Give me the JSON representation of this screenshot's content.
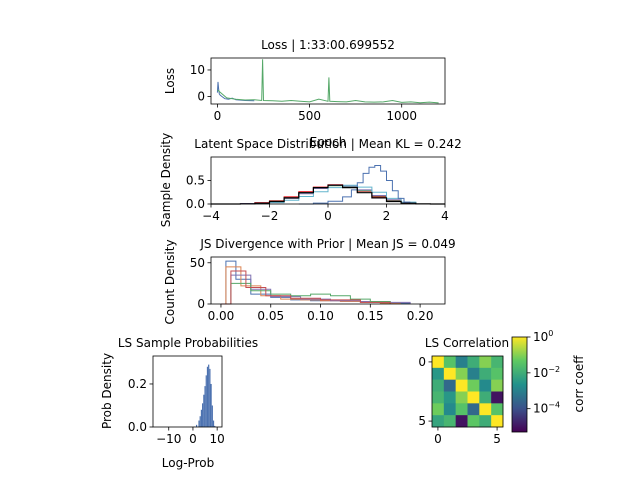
{
  "chart_data": [
    {
      "type": "line",
      "title": "Loss | 1:33:00.699552",
      "xlabel": "Epoch",
      "ylabel": "Loss",
      "xlim": [
        -35,
        1235
      ],
      "ylim": [
        -2.8,
        14.5
      ],
      "xticks": [
        0,
        500,
        1000
      ],
      "xtick_labels": [
        "0",
        "500",
        "1000"
      ],
      "yticks": [
        10,
        0
      ],
      "ytick_labels": [
        "10",
        "0"
      ],
      "series": [
        {
          "color": "#4c72b0",
          "x": [
            0,
            3,
            6,
            10,
            15,
            25,
            40,
            60,
            80,
            100,
            150,
            200
          ],
          "y": [
            1.5,
            5.5,
            3.0,
            1.0,
            0.5,
            0.0,
            -0.8,
            -1.0,
            -0.6,
            -1.2,
            -1.5,
            -1.6
          ]
        },
        {
          "color": "#55a868",
          "x": [
            0,
            50,
            100,
            150,
            200,
            240,
            245,
            250,
            300,
            350,
            400,
            450,
            500,
            550,
            600,
            605,
            610,
            650,
            700,
            750,
            800,
            850,
            900,
            950,
            1000,
            1050,
            1100,
            1150,
            1200
          ],
          "y": [
            2.5,
            -0.5,
            -1.0,
            -1.3,
            -1.2,
            -1.5,
            14.0,
            -1.5,
            -1.6,
            -1.8,
            -1.5,
            -1.8,
            -2.0,
            -1.0,
            -1.8,
            7.2,
            -1.8,
            -1.9,
            -2.0,
            -1.5,
            -2.0,
            -2.1,
            -2.0,
            -1.5,
            -2.2,
            -2.0,
            -2.3,
            -2.1,
            -2.4
          ]
        }
      ]
    },
    {
      "type": "line",
      "title": "Latent Space Distribution | Mean KL = 0.242",
      "xlabel": "",
      "ylabel": "Sample Density",
      "xlim": [
        -4,
        4
      ],
      "ylim": [
        0,
        1.0
      ],
      "xticks": [
        -4,
        -2,
        0,
        2,
        4
      ],
      "xtick_labels": [
        "−4",
        "−2",
        "0",
        "2",
        "4"
      ],
      "yticks": [
        0.0,
        0.5
      ],
      "ytick_labels": [
        "0.0",
        "0.5"
      ],
      "series": [
        {
          "color": "#e8000b",
          "x": [
            -3.0,
            -2.5,
            -2.0,
            -1.5,
            -1.0,
            -0.5,
            0.0,
            0.5,
            1.0,
            1.5,
            2.0,
            2.5,
            3.0
          ],
          "y": [
            0.01,
            0.03,
            0.07,
            0.15,
            0.26,
            0.36,
            0.41,
            0.37,
            0.27,
            0.15,
            0.07,
            0.02,
            0.0
          ]
        },
        {
          "color": "#55a868",
          "x": [
            -3.0,
            -2.5,
            -2.0,
            -1.5,
            -1.0,
            -0.5,
            0.0,
            0.5,
            1.0,
            1.5,
            2.0,
            2.5,
            3.0
          ],
          "y": [
            0.01,
            0.02,
            0.06,
            0.13,
            0.24,
            0.34,
            0.39,
            0.37,
            0.28,
            0.17,
            0.08,
            0.03,
            0.01
          ]
        },
        {
          "color": "#8172b2",
          "x": [
            -3.0,
            -2.5,
            -2.0,
            -1.5,
            -1.0,
            -0.5,
            0.0,
            0.5,
            1.0,
            1.5,
            2.0,
            2.5,
            3.0
          ],
          "y": [
            0.01,
            0.02,
            0.05,
            0.12,
            0.22,
            0.33,
            0.4,
            0.38,
            0.3,
            0.18,
            0.09,
            0.03,
            0.01
          ]
        },
        {
          "color": "#64b5cd",
          "x": [
            -2.5,
            -2.0,
            -1.5,
            -1.0,
            -0.5,
            0.0,
            0.5,
            1.0,
            1.5,
            2.0,
            2.5,
            3.0
          ],
          "y": [
            0.01,
            0.03,
            0.08,
            0.16,
            0.26,
            0.35,
            0.4,
            0.36,
            0.25,
            0.12,
            0.04,
            0.01
          ]
        },
        {
          "color": "#4c72b0",
          "x": [
            -1.0,
            -0.5,
            0.0,
            0.5,
            0.8,
            1.0,
            1.2,
            1.4,
            1.6,
            1.8,
            2.0,
            2.2,
            2.4,
            2.6,
            2.8
          ],
          "y": [
            0.0,
            0.02,
            0.06,
            0.15,
            0.3,
            0.45,
            0.65,
            0.78,
            0.82,
            0.7,
            0.5,
            0.28,
            0.12,
            0.04,
            0.0
          ]
        },
        {
          "color": "#000000",
          "x": [
            -4.0,
            -3.5,
            -3.0,
            -2.5,
            -2.0,
            -1.5,
            -1.0,
            -0.5,
            0.0,
            0.5,
            1.0,
            1.5,
            2.0,
            2.5,
            3.0,
            3.5,
            4.0
          ],
          "y": [
            0.0,
            0.001,
            0.004,
            0.018,
            0.054,
            0.13,
            0.24,
            0.35,
            0.4,
            0.35,
            0.24,
            0.13,
            0.054,
            0.018,
            0.004,
            0.001,
            0.0
          ]
        }
      ]
    },
    {
      "type": "line",
      "title": "JS Divergence with Prior | Mean JS = 0.049",
      "xlabel": "",
      "ylabel": "Count Density",
      "xlim": [
        -0.01,
        0.225
      ],
      "ylim": [
        0,
        57
      ],
      "xticks": [
        0.0,
        0.05,
        0.1,
        0.15,
        0.2
      ],
      "xtick_labels": [
        "0.00",
        "0.05",
        "0.10",
        "0.15",
        "0.20"
      ],
      "yticks": [
        0,
        50
      ],
      "ytick_labels": [
        "0",
        "50"
      ],
      "series": [
        {
          "color": "#4c72b0",
          "x": [
            0.0,
            0.005,
            0.015,
            0.03,
            0.05,
            0.07,
            0.09,
            0.11,
            0.13,
            0.15,
            0.17,
            0.19
          ],
          "y": [
            0,
            52,
            30,
            12,
            8,
            5,
            4,
            4,
            3,
            2,
            1,
            0
          ]
        },
        {
          "color": "#dd8452",
          "x": [
            0.0,
            0.005,
            0.02,
            0.04,
            0.06,
            0.08,
            0.1,
            0.12,
            0.14,
            0.16,
            0.18
          ],
          "y": [
            0,
            45,
            22,
            10,
            6,
            5,
            4,
            3,
            2,
            1,
            0
          ]
        },
        {
          "color": "#8172b2",
          "x": [
            0.0,
            0.01,
            0.03,
            0.05,
            0.08,
            0.11,
            0.14,
            0.17,
            0.19
          ],
          "y": [
            0,
            35,
            18,
            9,
            6,
            4,
            3,
            2,
            0
          ]
        },
        {
          "color": "#55a868",
          "x": [
            0.0,
            0.01,
            0.03,
            0.05,
            0.07,
            0.09,
            0.11,
            0.13,
            0.15,
            0.17
          ],
          "y": [
            0,
            25,
            16,
            12,
            10,
            12,
            10,
            6,
            3,
            0
          ]
        },
        {
          "color": "#c44e52",
          "x": [
            0.0,
            0.01,
            0.025,
            0.045,
            0.07,
            0.1,
            0.14,
            0.17
          ],
          "y": [
            0,
            40,
            20,
            10,
            7,
            5,
            2,
            0
          ]
        }
      ]
    },
    {
      "type": "bar",
      "title": "LS Sample Probabilities",
      "xlabel": "Log-Prob",
      "ylabel": "Prob Density",
      "xlim": [
        -16.5,
        12
      ],
      "ylim": [
        0,
        0.33
      ],
      "xticks": [
        -10,
        0,
        10
      ],
      "xtick_labels": [
        "−10",
        "0",
        "10"
      ],
      "yticks": [
        0.0,
        0.2
      ],
      "ytick_labels": [
        "0.0",
        "0.2"
      ],
      "color": "#4c72b0",
      "x": [
        0.5,
        1.5,
        2.5,
        3.0,
        3.5,
        4.0,
        4.5,
        5.0,
        5.5,
        6.0,
        6.5,
        7.0,
        7.5,
        8.0,
        8.5,
        9.0
      ],
      "values": [
        0.002,
        0.01,
        0.03,
        0.05,
        0.08,
        0.11,
        0.15,
        0.19,
        0.24,
        0.28,
        0.29,
        0.27,
        0.2,
        0.1,
        0.03,
        0.005
      ]
    },
    {
      "type": "heatmap",
      "title": "LS Correlation",
      "xlabel": "",
      "ylabel": "",
      "xticks": [
        0,
        5
      ],
      "xtick_labels": [
        "0",
        "5"
      ],
      "yticks": [
        0,
        5
      ],
      "ytick_labels": [
        "0",
        "5"
      ],
      "scale": "log",
      "vmin": 5e-06,
      "vmax": 1,
      "colorbar_label": "corr coeff",
      "colorbar_ticks": [
        "10^0",
        "10^-2",
        "10^-4"
      ],
      "colorbar_tick_values": [
        0,
        -2,
        -4
      ],
      "colors": [
        "#440154",
        "#3b528b",
        "#21918c",
        "#5ec962",
        "#fde725"
      ],
      "matrix_log10": [
        [
          0.0,
          -1.5,
          -3.0,
          -2.0,
          -1.0,
          -1.8
        ],
        [
          -2.5,
          0.0,
          -1.0,
          -3.0,
          -2.0,
          -1.5
        ],
        [
          -2.0,
          -3.5,
          0.0,
          -1.2,
          -2.8,
          -1.0
        ],
        [
          -1.8,
          -2.5,
          -1.0,
          0.0,
          -2.0,
          -5.0
        ],
        [
          -1.2,
          -2.8,
          -1.5,
          -3.5,
          0.0,
          -1.5
        ],
        [
          -2.2,
          -1.8,
          -5.0,
          -1.4,
          -2.0,
          0.0
        ]
      ]
    }
  ]
}
